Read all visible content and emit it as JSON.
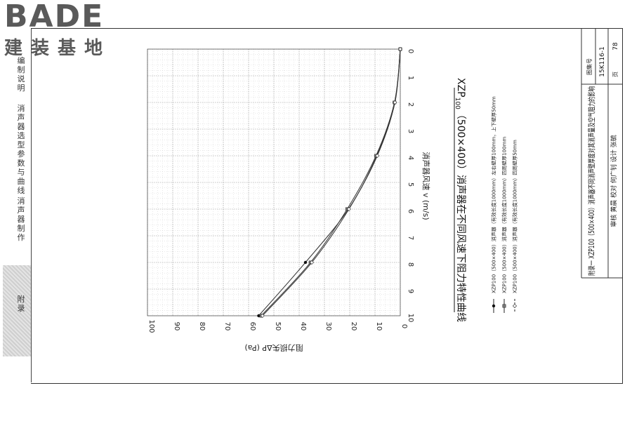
{
  "logo": {
    "brand": "BADE",
    "subtitle": "建装基地"
  },
  "sidebar": {
    "items": [
      {
        "label": "编制说明"
      },
      {
        "label": "消声器选型参数与曲线"
      },
      {
        "label": "消声器制作"
      },
      {
        "label": "附录"
      }
    ]
  },
  "chart_data": {
    "type": "line",
    "title_prefix": "XZP",
    "title_sub": "100",
    "title_rest": "（500×400）消声器在不同风速下阻力特性曲线",
    "xlabel": "消声器风速 v (m/s)",
    "ylabel": "阻力损失ΔP (Pa)",
    "xlim": [
      0,
      10
    ],
    "ylim": [
      0,
      100
    ],
    "x_ticks": [
      0,
      1,
      2,
      3,
      4,
      5,
      6,
      7,
      8,
      9,
      10
    ],
    "y_ticks": [
      0,
      10,
      20,
      30,
      40,
      50,
      60,
      70,
      80,
      90,
      100
    ],
    "grid": true,
    "series": [
      {
        "name": "XZP100（500×400）消声器（有效长度1000mm）左右壁厚100mm，上下壁厚50mm",
        "marker": "dot",
        "x": [
          0,
          2,
          4,
          6,
          8,
          10
        ],
        "y": [
          0,
          2.2,
          9.3,
          20.5,
          37.5,
          56
        ]
      },
      {
        "name": "XZP100（500×400）消声器（有效长度1000mm）四周壁厚100mm",
        "marker": "square",
        "x": [
          0,
          2,
          4,
          6,
          8,
          10
        ],
        "y": [
          0,
          2.3,
          9.6,
          21,
          35.5,
          55
        ]
      },
      {
        "name": "XZP100（500×400）消声器（有效长度1000mm）四周壁厚50mm",
        "marker": "diamond",
        "x": [
          0,
          2,
          4,
          6,
          8,
          10
        ],
        "y": [
          0,
          2.1,
          9.1,
          20.3,
          35,
          54.5
        ]
      }
    ]
  },
  "title_block": {
    "caption": "附录一  XZP100（500×400）消声器不同消声壁厚度对其消声量及空气阻力的影响",
    "atlas_label": "图集号",
    "atlas_no": "15K116-1",
    "page_label": "页",
    "page_no": "78",
    "sign_row": "审核 黄晨 校对 何广钊 设计 张毓"
  },
  "colors": {
    "grid": "#8a8a8a",
    "line": "#333333",
    "frame": "#333333"
  }
}
